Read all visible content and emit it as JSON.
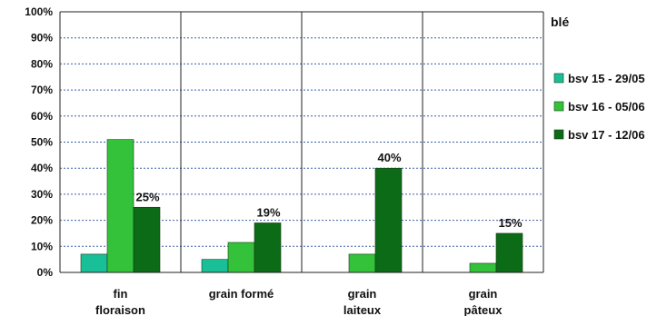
{
  "chart_data": {
    "type": "bar",
    "categories": [
      [
        "fin",
        "floraison"
      ],
      [
        "grain formé"
      ],
      [
        "grain",
        "laiteux"
      ],
      [
        "grain",
        "pâteux"
      ]
    ],
    "series": [
      {
        "name": "bsv 15 - 29/05",
        "color": "#19bf96",
        "values": [
          7,
          5,
          0,
          0
        ]
      },
      {
        "name": "bsv 16 - 05/06",
        "color": "#33c23a",
        "values": [
          51,
          11.5,
          7,
          3.5
        ]
      },
      {
        "name": "bsv 17 - 12/06",
        "color": "#0b6b16",
        "values": [
          25,
          19,
          40,
          15
        ]
      }
    ],
    "data_labels": [
      {
        "series": 2,
        "category": 0,
        "text": "25%"
      },
      {
        "series": 2,
        "category": 1,
        "text": "19%"
      },
      {
        "series": 2,
        "category": 2,
        "text": "40%"
      },
      {
        "series": 2,
        "category": 3,
        "text": "15%"
      }
    ],
    "ylim": [
      0,
      100
    ],
    "yticks": [
      "0%",
      "10%",
      "20%",
      "30%",
      "40%",
      "50%",
      "60%",
      "70%",
      "80%",
      "90%",
      "100%"
    ],
    "legend_title": "blé",
    "legend_position": "right",
    "grid": true
  }
}
